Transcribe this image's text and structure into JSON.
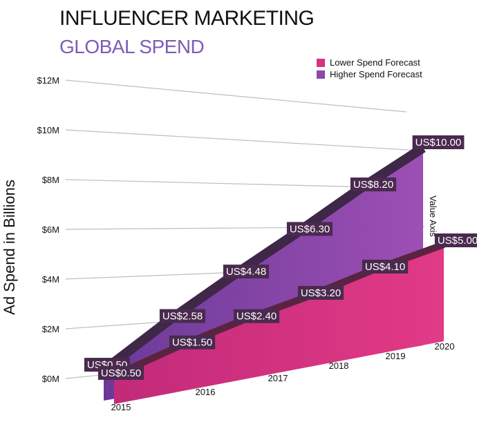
{
  "header": {
    "title": "INFLUENCER MARKETING",
    "subtitle": "GLOBAL SPEND"
  },
  "chart_data": {
    "type": "area",
    "ylabel": "Ad Spend in Billions",
    "value_axis_label": "Value Axis",
    "y_ticks": [
      "$0M",
      "$2M",
      "$4M",
      "$6M",
      "$8M",
      "$10M",
      "$12M"
    ],
    "ylim": [
      0,
      12
    ],
    "categories": [
      "2015",
      "2016",
      "2017",
      "2018",
      "2019",
      "2020"
    ],
    "series": [
      {
        "name": "Lower Spend  Forecast",
        "color": "#d6337e",
        "values": [
          0.5,
          1.5,
          2.4,
          3.2,
          4.1,
          5.0
        ],
        "labels": [
          "US$0.50",
          "US$1.50",
          "US$2.40",
          "US$3.20",
          "US$4.10",
          "US$5.00"
        ]
      },
      {
        "name": "Higher Spend  Forecast",
        "color": "#8a4aa8",
        "values": [
          0.5,
          2.58,
          4.48,
          6.3,
          8.2,
          10.0
        ],
        "labels": [
          "US$0.50",
          "US$2.58",
          "US$4.48",
          "US$6.30",
          "US$8.20",
          "US$10.00"
        ]
      }
    ],
    "legend_position": "top-right",
    "grid": true
  }
}
